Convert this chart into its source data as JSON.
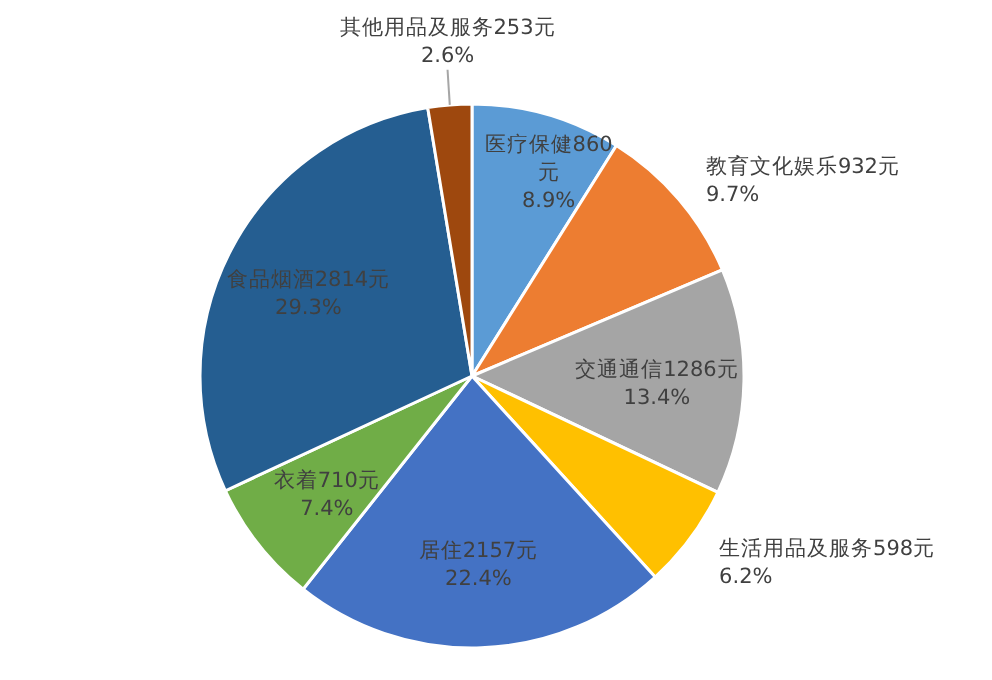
{
  "chart_data": {
    "type": "pie",
    "categories": [
      "医疗保健860元",
      "教育文化娱乐932元",
      "交通通信1286元",
      "生活用品及服务598元",
      "居住2157元",
      "衣着710元",
      "食品烟酒2814元",
      "其他用品及服务253元"
    ],
    "values": [
      8.9,
      9.7,
      13.4,
      6.2,
      22.4,
      7.4,
      29.3,
      2.6
    ],
    "value_labels": [
      "8.9%",
      "9.7%",
      "13.4%",
      "6.2%",
      "22.4%",
      "7.4%",
      "29.3%",
      "2.6%"
    ],
    "colors": [
      "#5b9bd5",
      "#ed7d31",
      "#a5a5a5",
      "#ffc000",
      "#4472c4",
      "#70ad47",
      "#255e91",
      "#9e480e"
    ]
  }
}
